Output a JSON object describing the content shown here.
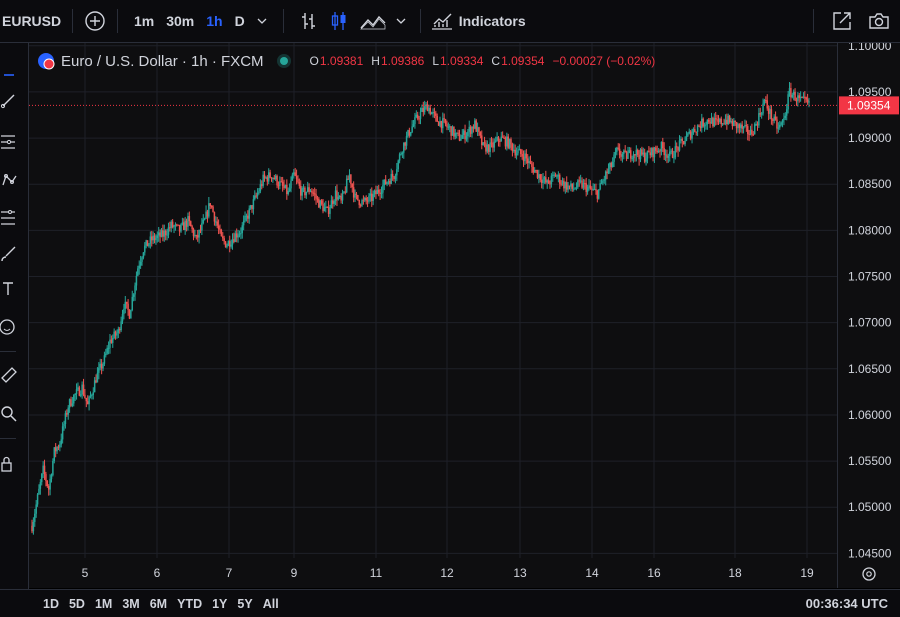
{
  "toolbar": {
    "symbol": "EURUSD",
    "intervals": [
      "1m",
      "30m",
      "1h",
      "D"
    ],
    "active_interval": "1h",
    "indicators_label": "Indicators"
  },
  "legend": {
    "title": "Euro / U.S. Dollar · 1h · FXCM",
    "open_label": "O",
    "open": "1.09381",
    "high_label": "H",
    "high": "1.09386",
    "low_label": "L",
    "low": "1.09334",
    "close_label": "C",
    "close": "1.09354",
    "change": "−0.00027 (−0.02%)"
  },
  "price_axis": {
    "ticks": [
      "1.10000",
      "1.09500",
      "1.09000",
      "1.08500",
      "1.08000",
      "1.07500",
      "1.07000",
      "1.06500",
      "1.06000",
      "1.05500",
      "1.05000",
      "1.04500"
    ],
    "last_price": "1.09354"
  },
  "time_axis": {
    "ticks": [
      "5",
      "6",
      "7",
      "9",
      "11",
      "12",
      "13",
      "14",
      "16",
      "18",
      "19"
    ]
  },
  "bottom": {
    "ranges": [
      "1D",
      "5D",
      "1M",
      "3M",
      "6M",
      "YTD",
      "1Y",
      "5Y",
      "All"
    ],
    "clock": "00:36:34 UTC"
  },
  "colors": {
    "up": "#26a69a",
    "down": "#ef5350",
    "accent": "#2962ff",
    "last_price_bg": "#f23645"
  },
  "chart_data": {
    "type": "candlestick",
    "ylim": [
      1.0445,
      1.1003
    ],
    "anchors": [
      [
        0,
        1.048
      ],
      [
        4,
        1.051
      ],
      [
        8,
        1.054
      ],
      [
        12,
        1.052
      ],
      [
        16,
        1.056
      ],
      [
        20,
        1.057
      ],
      [
        26,
        1.061
      ],
      [
        30,
        1.062
      ],
      [
        36,
        1.063
      ],
      [
        40,
        1.061
      ],
      [
        46,
        1.064
      ],
      [
        52,
        1.066
      ],
      [
        56,
        1.068
      ],
      [
        62,
        1.069
      ],
      [
        66,
        1.072
      ],
      [
        70,
        1.071
      ],
      [
        76,
        1.076
      ],
      [
        80,
        1.078
      ],
      [
        86,
        1.079
      ],
      [
        94,
        1.0795
      ],
      [
        100,
        1.0805
      ],
      [
        106,
        1.08
      ],
      [
        112,
        1.081
      ],
      [
        118,
        1.079
      ],
      [
        124,
        1.081
      ],
      [
        128,
        1.083
      ],
      [
        132,
        1.081
      ],
      [
        136,
        1.079
      ],
      [
        140,
        1.0785
      ],
      [
        146,
        1.0795
      ],
      [
        150,
        1.08
      ],
      [
        156,
        1.082
      ],
      [
        162,
        1.084
      ],
      [
        166,
        1.0855
      ],
      [
        172,
        1.086
      ],
      [
        178,
        1.085
      ],
      [
        184,
        1.084
      ],
      [
        188,
        1.086
      ],
      [
        194,
        1.084
      ],
      [
        200,
        1.0845
      ],
      [
        206,
        1.083
      ],
      [
        212,
        1.082
      ],
      [
        218,
        1.084
      ],
      [
        222,
        1.083
      ],
      [
        228,
        1.086
      ],
      [
        232,
        1.0835
      ],
      [
        238,
        1.083
      ],
      [
        244,
        1.0835
      ],
      [
        250,
        1.0845
      ],
      [
        256,
        1.0855
      ],
      [
        260,
        1.086
      ],
      [
        266,
        1.089
      ],
      [
        272,
        1.091
      ],
      [
        278,
        1.0925
      ],
      [
        284,
        1.0935
      ],
      [
        290,
        1.092
      ],
      [
        296,
        1.0915
      ],
      [
        300,
        1.091
      ],
      [
        306,
        1.09
      ],
      [
        312,
        1.0905
      ],
      [
        318,
        1.0915
      ],
      [
        324,
        1.089
      ],
      [
        330,
        1.089
      ],
      [
        336,
        1.09
      ],
      [
        342,
        1.0895
      ],
      [
        348,
        1.0885
      ],
      [
        354,
        1.088
      ],
      [
        358,
        1.087
      ],
      [
        364,
        1.086
      ],
      [
        370,
        1.085
      ],
      [
        376,
        1.086
      ],
      [
        382,
        1.085
      ],
      [
        388,
        1.0845
      ],
      [
        394,
        1.085
      ],
      [
        400,
        1.0845
      ],
      [
        406,
        1.084
      ],
      [
        412,
        1.086
      ],
      [
        416,
        1.087
      ],
      [
        420,
        1.0885
      ],
      [
        426,
        1.088
      ],
      [
        432,
        1.0885
      ],
      [
        440,
        1.088
      ],
      [
        446,
        1.0885
      ],
      [
        452,
        1.089
      ],
      [
        458,
        1.088
      ],
      [
        464,
        1.089
      ],
      [
        470,
        1.09
      ],
      [
        476,
        1.091
      ],
      [
        480,
        1.0915
      ],
      [
        486,
        1.092
      ],
      [
        492,
        1.0915
      ],
      [
        498,
        1.092
      ],
      [
        504,
        1.0915
      ],
      [
        510,
        1.091
      ],
      [
        516,
        1.0905
      ],
      [
        520,
        1.0915
      ],
      [
        526,
        1.094
      ],
      [
        532,
        1.092
      ],
      [
        536,
        1.091
      ],
      [
        540,
        1.092
      ],
      [
        544,
        1.095
      ],
      [
        548,
        1.0945
      ],
      [
        552,
        1.094
      ],
      [
        556,
        1.0938
      ],
      [
        558,
        1.0935
      ]
    ]
  }
}
